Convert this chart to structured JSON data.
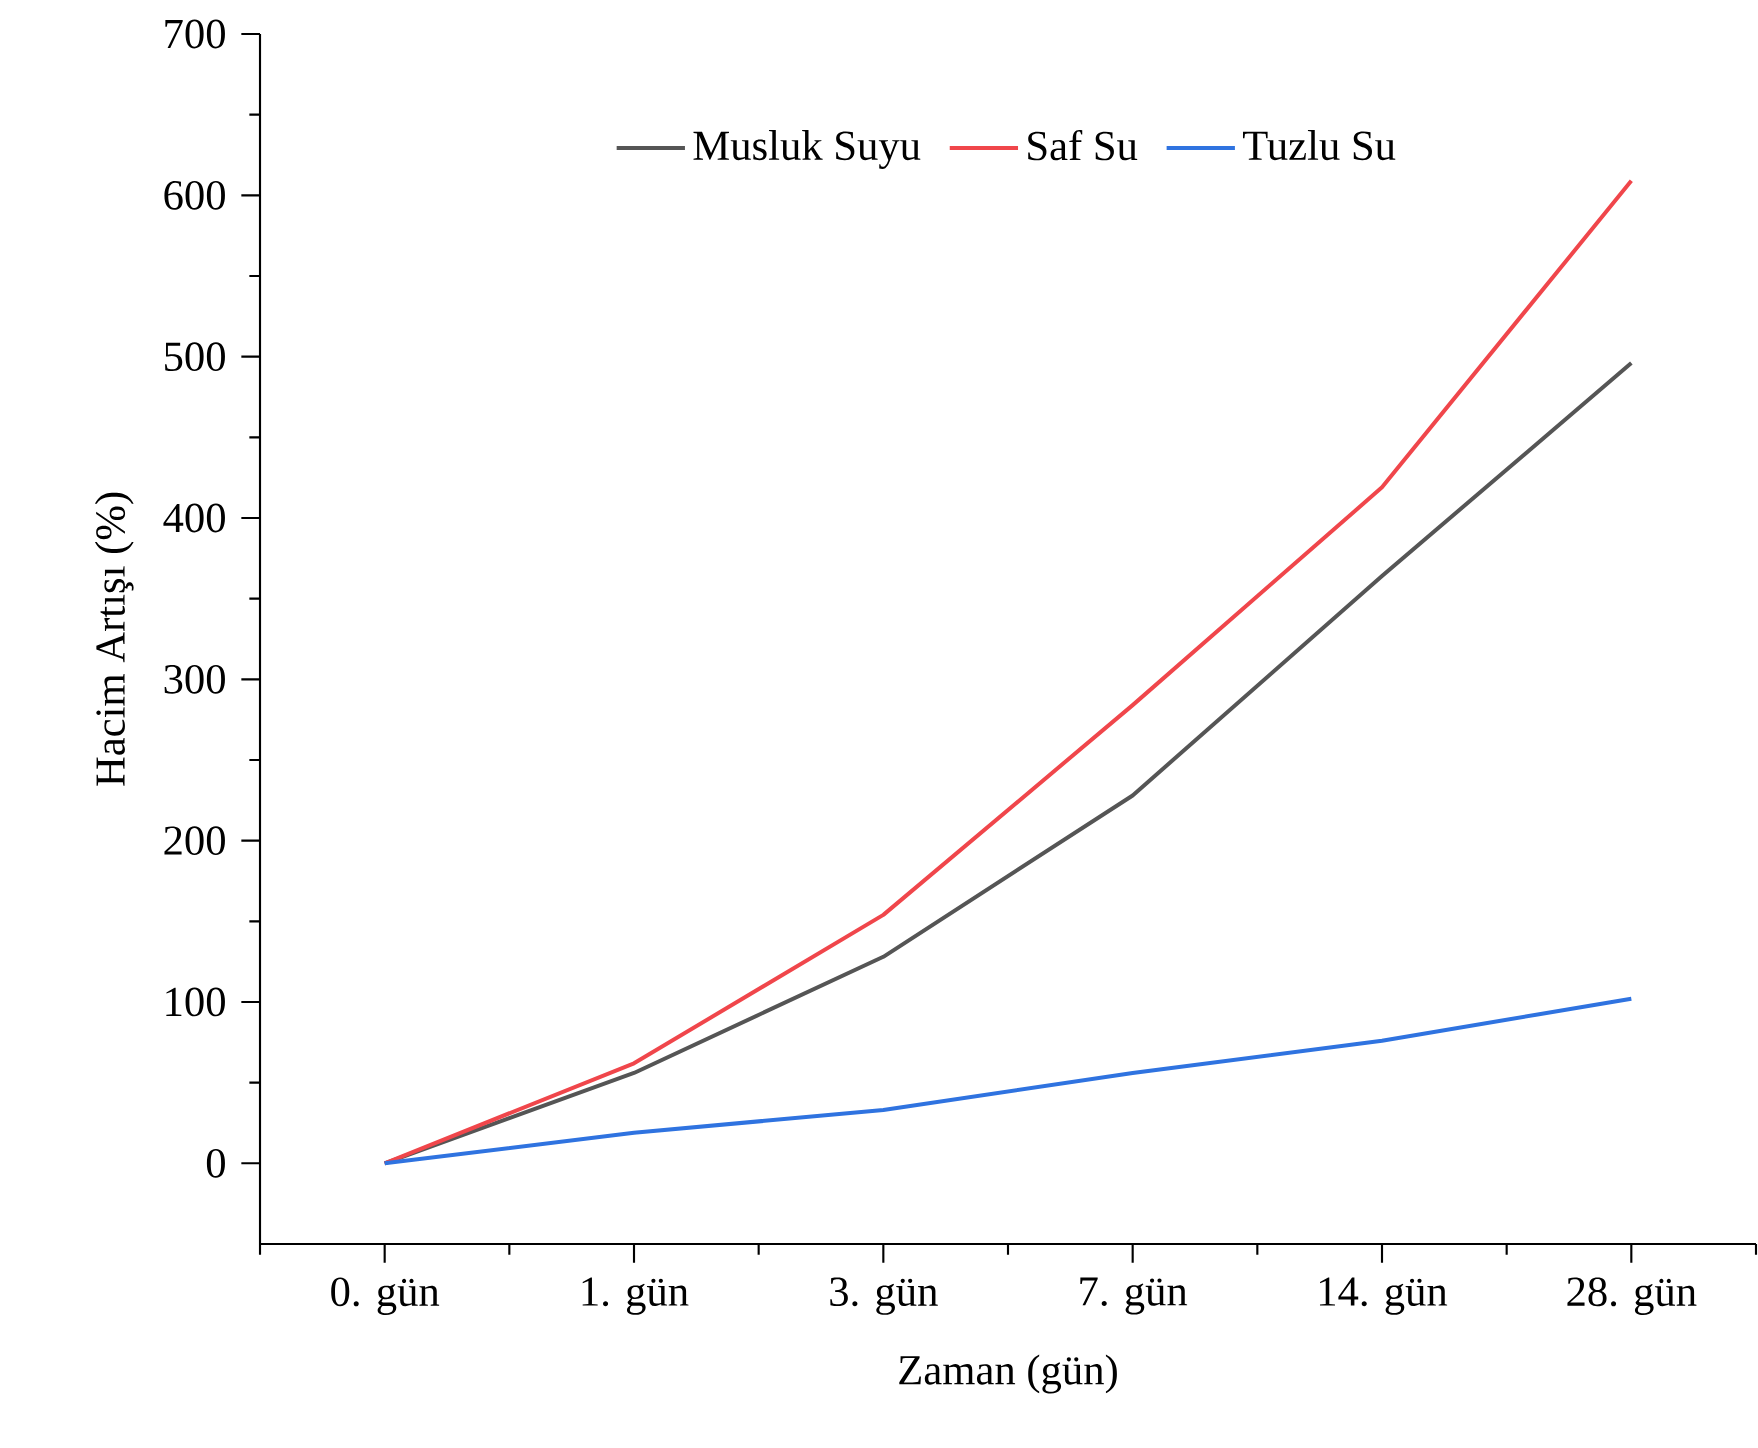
{
  "chart_data": {
    "type": "line",
    "xlabel": "Zaman (gün)",
    "ylabel": "Hacim Artışı (%)",
    "categories": [
      "0. gün",
      "1. gün",
      "3. gün",
      "7. gün",
      "14. gün",
      "28. gün"
    ],
    "series": [
      {
        "name": "Musluk Suyu",
        "color": "#555555",
        "values": [
          0,
          56,
          128,
          228,
          364,
          496
        ]
      },
      {
        "name": "Saf Su",
        "color": "#f0464b",
        "values": [
          0,
          62,
          154,
          284,
          419,
          609
        ]
      },
      {
        "name": "Tuzlu Su",
        "color": "#2f73e0",
        "values": [
          0,
          19,
          33,
          56,
          76,
          102
        ]
      }
    ],
    "ylim": [
      -50,
      700
    ],
    "yticks": [
      0,
      100,
      200,
      300,
      400,
      500,
      600,
      700
    ],
    "grid": false,
    "legend": "top",
    "marker": "none",
    "line_style": "solid"
  }
}
